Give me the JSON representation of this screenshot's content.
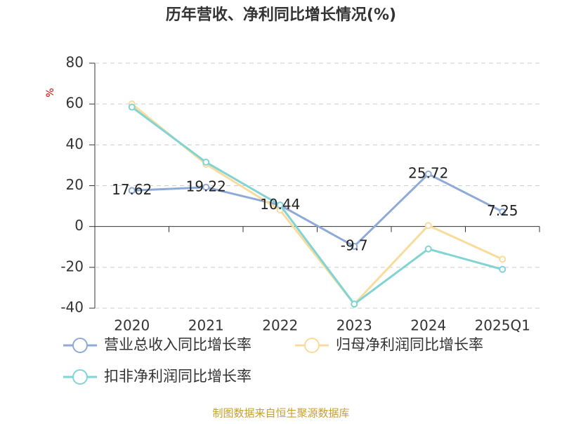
{
  "chart_data": {
    "type": "line",
    "title": "历年营收、净利同比增长情况(%)",
    "y_label": "%",
    "footer": "制图数据来自恒生聚源数据库",
    "categories": [
      "2020",
      "2021",
      "2022",
      "2023",
      "2024",
      "2025Q1"
    ],
    "series": [
      {
        "name": "营业总收入同比增长率",
        "color": "#8eaad8",
        "values": [
          17.62,
          19.22,
          10.44,
          -9.7,
          25.72,
          7.25
        ],
        "show_labels": true
      },
      {
        "name": "归母净利润同比增长率",
        "color": "#f9dc9d",
        "values": [
          60,
          30.5,
          8,
          -38,
          0.5,
          -16
        ],
        "show_labels": false
      },
      {
        "name": "扣非净利润同比增长率",
        "color": "#80d4d4",
        "values": [
          58.5,
          31.5,
          10.5,
          -38,
          -11,
          -21
        ],
        "show_labels": false
      }
    ],
    "ylim": [
      -40,
      80
    ],
    "yticks": [
      -40,
      -20,
      0,
      20,
      40,
      60,
      80
    ],
    "grid": true
  }
}
